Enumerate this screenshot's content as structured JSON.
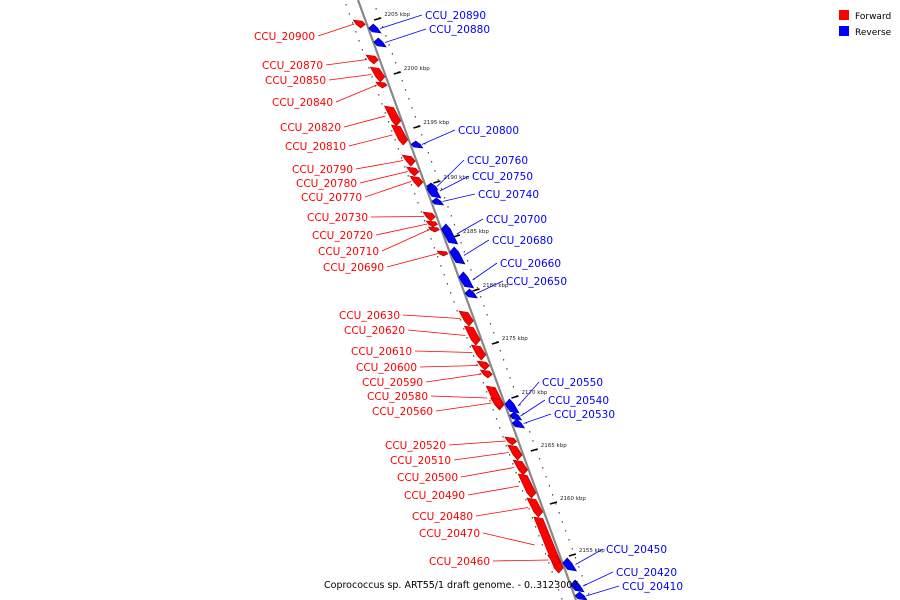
{
  "caption": "Coprococcus sp. ART55/1 draft genome. - 0..3123007",
  "colors": {
    "forward": "#ff0000",
    "reverse": "#0000ff",
    "backbone": "#888888"
  },
  "legend": [
    {
      "label": "Forward",
      "color": "#ff0000"
    },
    {
      "label": "Reverse",
      "color": "#0000ff"
    }
  ],
  "scale_ticks": [
    {
      "kbp": 2205,
      "label": "2205 kbp"
    },
    {
      "kbp": 2200,
      "label": "2200 kbp"
    },
    {
      "kbp": 2195,
      "label": "2195 kbp"
    },
    {
      "kbp": 2190,
      "label": "2190 kbp"
    },
    {
      "kbp": 2185,
      "label": "2185 kbp"
    },
    {
      "kbp": 2180,
      "label": "2180 kbp"
    },
    {
      "kbp": 2175,
      "label": "2175 kbp"
    },
    {
      "kbp": 2170,
      "label": "2170 kbp"
    },
    {
      "kbp": 2165,
      "label": "2165 kbp"
    },
    {
      "kbp": 2160,
      "label": "2160 kbp"
    },
    {
      "kbp": 2155,
      "label": "2155 kbp"
    }
  ],
  "genes": [
    {
      "name": "CCU_20900",
      "strand": "forward"
    },
    {
      "name": "CCU_20890",
      "strand": "reverse"
    },
    {
      "name": "CCU_20880",
      "strand": "reverse"
    },
    {
      "name": "CCU_20870",
      "strand": "forward"
    },
    {
      "name": "CCU_20850",
      "strand": "forward"
    },
    {
      "name": "CCU_20840",
      "strand": "forward"
    },
    {
      "name": "CCU_20820",
      "strand": "forward"
    },
    {
      "name": "CCU_20810",
      "strand": "forward"
    },
    {
      "name": "CCU_20800",
      "strand": "reverse"
    },
    {
      "name": "CCU_20790",
      "strand": "forward"
    },
    {
      "name": "CCU_20780",
      "strand": "forward"
    },
    {
      "name": "CCU_20770",
      "strand": "forward"
    },
    {
      "name": "CCU_20760",
      "strand": "reverse"
    },
    {
      "name": "CCU_20750",
      "strand": "reverse"
    },
    {
      "name": "CCU_20740",
      "strand": "reverse"
    },
    {
      "name": "CCU_20730",
      "strand": "forward"
    },
    {
      "name": "CCU_20720",
      "strand": "forward"
    },
    {
      "name": "CCU_20710",
      "strand": "forward"
    },
    {
      "name": "CCU_20700",
      "strand": "reverse"
    },
    {
      "name": "CCU_20690",
      "strand": "forward"
    },
    {
      "name": "CCU_20680",
      "strand": "reverse"
    },
    {
      "name": "CCU_20660",
      "strand": "reverse"
    },
    {
      "name": "CCU_20650",
      "strand": "reverse"
    },
    {
      "name": "CCU_20630",
      "strand": "forward"
    },
    {
      "name": "CCU_20620",
      "strand": "forward"
    },
    {
      "name": "CCU_20610",
      "strand": "forward"
    },
    {
      "name": "CCU_20600",
      "strand": "forward"
    },
    {
      "name": "CCU_20590",
      "strand": "forward"
    },
    {
      "name": "CCU_20580",
      "strand": "forward"
    },
    {
      "name": "CCU_20560",
      "strand": "forward"
    },
    {
      "name": "CCU_20550",
      "strand": "reverse"
    },
    {
      "name": "CCU_20540",
      "strand": "reverse"
    },
    {
      "name": "CCU_20530",
      "strand": "reverse"
    },
    {
      "name": "CCU_20520",
      "strand": "forward"
    },
    {
      "name": "CCU_20510",
      "strand": "forward"
    },
    {
      "name": "CCU_20500",
      "strand": "forward"
    },
    {
      "name": "CCU_20490",
      "strand": "forward"
    },
    {
      "name": "CCU_20480",
      "strand": "forward"
    },
    {
      "name": "CCU_20470",
      "strand": "forward"
    },
    {
      "name": "CCU_20460",
      "strand": "forward"
    },
    {
      "name": "CCU_20450",
      "strand": "reverse"
    },
    {
      "name": "CCU_20420",
      "strand": "reverse"
    },
    {
      "name": "CCU_20410",
      "strand": "reverse"
    }
  ]
}
